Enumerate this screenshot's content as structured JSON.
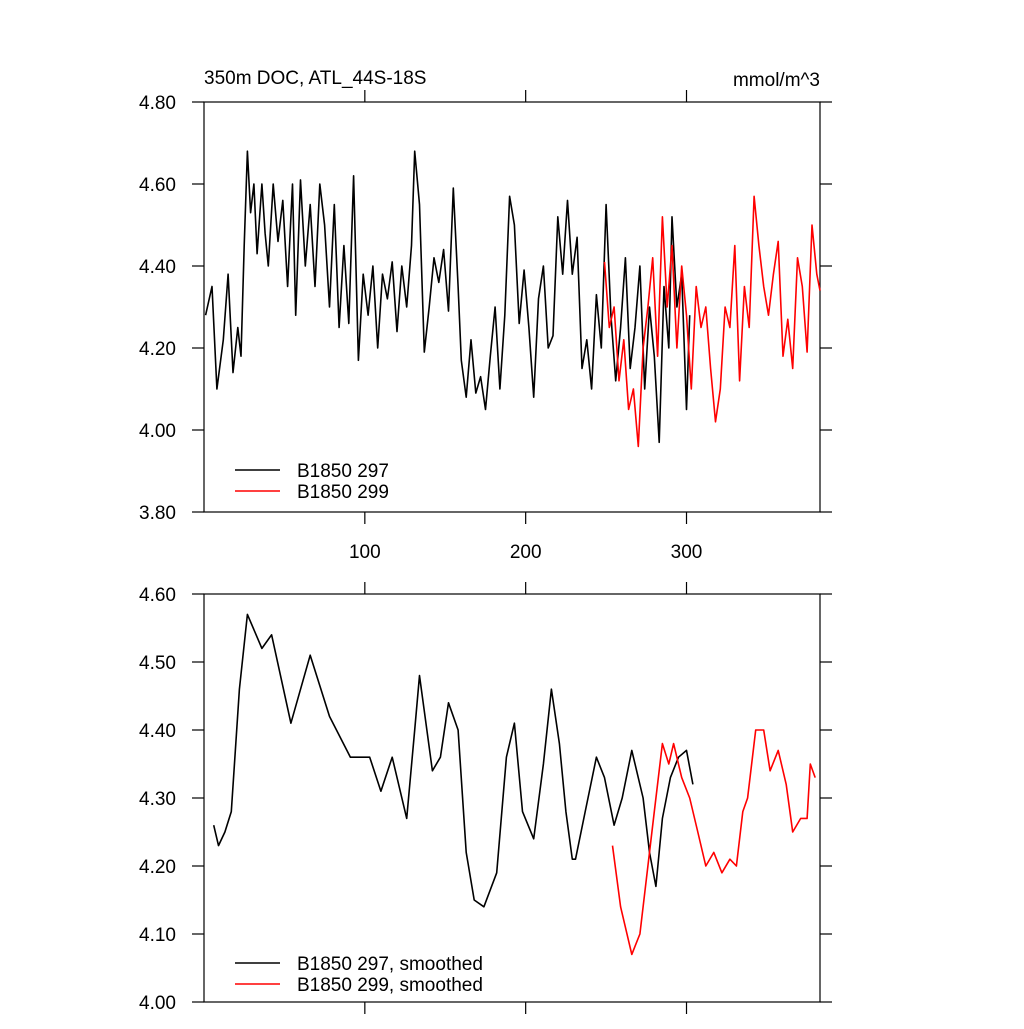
{
  "chart_data": [
    {
      "type": "line",
      "title": "350m DOC, ATL_44S-18S",
      "units": "mmol/m^3",
      "xlim": [
        0,
        383
      ],
      "xticks": [
        100,
        200,
        300
      ],
      "ylim": [
        3.8,
        4.8
      ],
      "yticks": [
        {
          "value": 3.8,
          "label": "3.80"
        },
        {
          "value": 4.0,
          "label": "4.00"
        },
        {
          "value": 4.2,
          "label": "4.20"
        },
        {
          "value": 4.4,
          "label": "4.40"
        },
        {
          "value": 4.6,
          "label": "4.60"
        },
        {
          "value": 4.8,
          "label": "4.80"
        }
      ],
      "series": [
        {
          "name": "B1850 297",
          "color": "#000000",
          "x": [
            1,
            5,
            8,
            12,
            15,
            18,
            21,
            23,
            25,
            27,
            29,
            31,
            33,
            36,
            38,
            40,
            43,
            46,
            49,
            52,
            55,
            57,
            60,
            63,
            66,
            69,
            72,
            75,
            78,
            81,
            84,
            87,
            90,
            93,
            96,
            99,
            102,
            105,
            108,
            111,
            114,
            117,
            120,
            123,
            126,
            129,
            131,
            134,
            137,
            140,
            143,
            146,
            149,
            152,
            155,
            158,
            160,
            163,
            166,
            169,
            172,
            175,
            178,
            181,
            184,
            187,
            190,
            193,
            196,
            199,
            202,
            205,
            208,
            211,
            214,
            217,
            220,
            223,
            226,
            229,
            232,
            235,
            238,
            241,
            244,
            247,
            250,
            253,
            256,
            259,
            262,
            265,
            268,
            271,
            274,
            277,
            280,
            283,
            286,
            289,
            291,
            294,
            297,
            300,
            302
          ],
          "values": [
            4.28,
            4.35,
            4.1,
            4.22,
            4.38,
            4.14,
            4.25,
            4.18,
            4.45,
            4.68,
            4.53,
            4.6,
            4.43,
            4.6,
            4.48,
            4.4,
            4.6,
            4.46,
            4.56,
            4.35,
            4.6,
            4.28,
            4.61,
            4.4,
            4.55,
            4.35,
            4.6,
            4.5,
            4.3,
            4.55,
            4.25,
            4.45,
            4.26,
            4.62,
            4.17,
            4.38,
            4.28,
            4.4,
            4.2,
            4.38,
            4.32,
            4.41,
            4.24,
            4.4,
            4.3,
            4.45,
            4.68,
            4.55,
            4.19,
            4.3,
            4.42,
            4.36,
            4.44,
            4.29,
            4.59,
            4.35,
            4.17,
            4.08,
            4.22,
            4.09,
            4.13,
            4.05,
            4.18,
            4.3,
            4.1,
            4.28,
            4.57,
            4.5,
            4.26,
            4.39,
            4.25,
            4.08,
            4.32,
            4.4,
            4.2,
            4.23,
            4.52,
            4.38,
            4.56,
            4.38,
            4.47,
            4.15,
            4.22,
            4.1,
            4.33,
            4.2,
            4.55,
            4.28,
            4.12,
            4.25,
            4.42,
            4.15,
            4.25,
            4.4,
            4.1,
            4.3,
            4.18,
            3.97,
            4.35,
            4.2,
            4.52,
            4.3,
            4.38,
            4.05,
            4.28
          ]
        },
        {
          "name": "B1850 299",
          "color": "#ff0000",
          "x": [
            249,
            252,
            255,
            258,
            261,
            264,
            267,
            270,
            273,
            276,
            279,
            282,
            285,
            288,
            291,
            294,
            297,
            300,
            303,
            306,
            309,
            312,
            315,
            318,
            321,
            324,
            327,
            330,
            333,
            336,
            339,
            342,
            345,
            348,
            351,
            354,
            357,
            360,
            363,
            366,
            369,
            372,
            375,
            378,
            381,
            383
          ],
          "values": [
            4.41,
            4.25,
            4.3,
            4.12,
            4.22,
            4.05,
            4.1,
            3.96,
            4.2,
            4.3,
            4.42,
            4.18,
            4.52,
            4.3,
            4.45,
            4.2,
            4.4,
            4.28,
            4.1,
            4.35,
            4.25,
            4.3,
            4.15,
            4.02,
            4.1,
            4.3,
            4.25,
            4.45,
            4.12,
            4.35,
            4.25,
            4.57,
            4.45,
            4.35,
            4.28,
            4.38,
            4.46,
            4.18,
            4.27,
            4.15,
            4.42,
            4.35,
            4.19,
            4.5,
            4.38,
            4.34
          ]
        }
      ]
    },
    {
      "type": "line",
      "xlim": [
        0,
        383
      ],
      "xticks": [
        100,
        200,
        300
      ],
      "ylim": [
        4.0,
        4.6
      ],
      "yticks": [
        {
          "value": 4.0,
          "label": "4.00"
        },
        {
          "value": 4.1,
          "label": "4.10"
        },
        {
          "value": 4.2,
          "label": "4.20"
        },
        {
          "value": 4.3,
          "label": "4.30"
        },
        {
          "value": 4.4,
          "label": "4.40"
        },
        {
          "value": 4.5,
          "label": "4.50"
        },
        {
          "value": 4.6,
          "label": "4.60"
        }
      ],
      "series": [
        {
          "name": "B1850 297, smoothed",
          "color": "#000000",
          "x": [
            6,
            9,
            13,
            17,
            22,
            27,
            36,
            42,
            54,
            66,
            78,
            91,
            103,
            110,
            117,
            126,
            131,
            134,
            142,
            147,
            152,
            158,
            163,
            168,
            174,
            182,
            188,
            193,
            198,
            205,
            211,
            216,
            221,
            225,
            229,
            231,
            237,
            244,
            249,
            255,
            260,
            266,
            273,
            277,
            281,
            285,
            290,
            295,
            300,
            304
          ],
          "values": [
            4.26,
            4.23,
            4.25,
            4.28,
            4.46,
            4.57,
            4.52,
            4.54,
            4.41,
            4.51,
            4.42,
            4.36,
            4.36,
            4.31,
            4.36,
            4.27,
            4.4,
            4.48,
            4.34,
            4.36,
            4.44,
            4.4,
            4.22,
            4.15,
            4.14,
            4.19,
            4.36,
            4.41,
            4.28,
            4.24,
            4.35,
            4.46,
            4.38,
            4.28,
            4.21,
            4.21,
            4.28,
            4.36,
            4.33,
            4.26,
            4.3,
            4.37,
            4.3,
            4.22,
            4.17,
            4.27,
            4.33,
            4.36,
            4.37,
            4.32
          ]
        },
        {
          "name": "B1850 299, smoothed",
          "color": "#ff0000",
          "x": [
            254,
            259,
            266,
            271,
            276,
            280,
            285,
            289,
            292,
            297,
            302,
            307,
            312,
            317,
            322,
            327,
            331,
            335,
            338,
            343,
            348,
            352,
            357,
            362,
            366,
            371,
            375,
            377,
            380
          ],
          "values": [
            4.23,
            4.14,
            4.07,
            4.1,
            4.2,
            4.28,
            4.38,
            4.35,
            4.38,
            4.33,
            4.3,
            4.25,
            4.2,
            4.22,
            4.19,
            4.21,
            4.2,
            4.28,
            4.3,
            4.4,
            4.4,
            4.34,
            4.37,
            4.32,
            4.25,
            4.27,
            4.27,
            4.35,
            4.33
          ]
        }
      ]
    }
  ]
}
